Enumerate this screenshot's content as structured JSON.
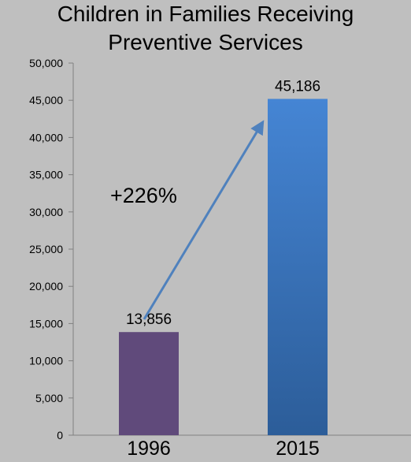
{
  "chart_data": {
    "type": "bar",
    "title_lines": [
      "Children in Families Receiving",
      "Preventive Services"
    ],
    "categories": [
      "1996",
      "2015"
    ],
    "values": [
      13856,
      45186
    ],
    "data_labels": [
      "13,856",
      "45,186"
    ],
    "ylim": [
      0,
      50000
    ],
    "y_ticks": [
      0,
      5000,
      10000,
      15000,
      20000,
      25000,
      30000,
      35000,
      40000,
      45000,
      50000
    ],
    "y_tick_labels": [
      "0",
      "5,000",
      "10,000",
      "15,000",
      "20,000",
      "25,000",
      "30,000",
      "35,000",
      "40,000",
      "45,000",
      "50,000"
    ],
    "grid": false,
    "legend": "none",
    "annotation": {
      "text": "+226%",
      "arrow_from": {
        "category": "1996",
        "value": 16000
      },
      "arrow_to": {
        "category": "2015",
        "value": 43000
      }
    },
    "colors": {
      "background": "#bfbfbf",
      "bar_1996": "#604a7b",
      "bar_2015_top": "#4585d4",
      "bar_2015_bottom": "#2c5d99",
      "arrow": "#4f81bd",
      "axis": "#808080"
    }
  }
}
